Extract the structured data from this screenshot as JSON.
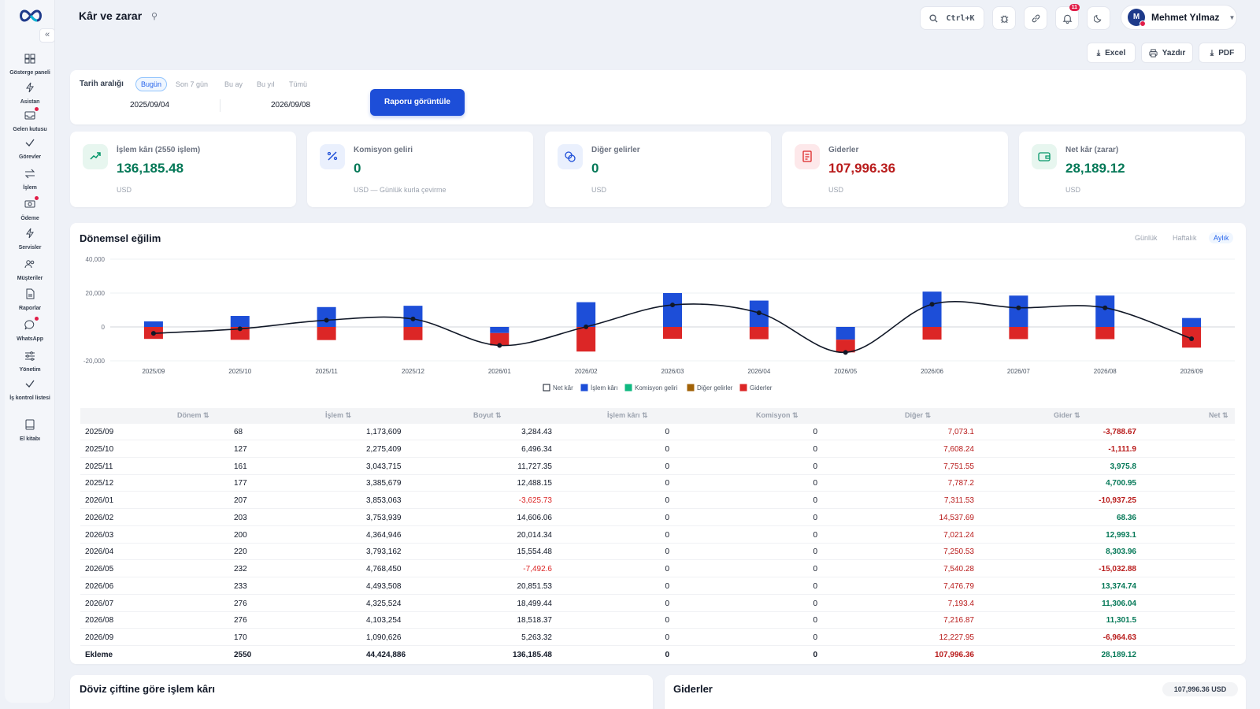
{
  "header": {
    "title": "Kâr ve zarar",
    "search_shortcut": "Ctrl+K",
    "notification_count": "11",
    "user": {
      "initial": "M",
      "name": "Mehmet Yılmaz"
    }
  },
  "exports": {
    "excel": "Excel",
    "print": "Yazdır",
    "pdf": "PDF"
  },
  "sidebar": {
    "items": [
      {
        "label": "Gösterge paneli",
        "icon": "dashboard-icon"
      },
      {
        "label": "Asistan",
        "icon": "bolt-icon"
      },
      {
        "label": "Gelen kutusu",
        "icon": "inbox-icon"
      },
      {
        "label": "Görevler",
        "icon": "check-icon"
      },
      {
        "label": "İşlem",
        "icon": "swap-icon"
      },
      {
        "label": "Ödeme",
        "icon": "payment-icon"
      },
      {
        "label": "Servisler",
        "icon": "bolt-icon"
      },
      {
        "label": "Müşteriler",
        "icon": "users-icon"
      },
      {
        "label": "Raporlar",
        "icon": "report-icon"
      },
      {
        "label": "WhatsApp",
        "icon": "chat-icon"
      },
      {
        "label": "Yönetim",
        "icon": "sliders-icon"
      },
      {
        "label": "İş kontrol listesi",
        "icon": "check-icon"
      },
      {
        "label": "El kitabı",
        "icon": "book-icon"
      }
    ]
  },
  "filter": {
    "label": "Tarih aralığı",
    "ranges": [
      "Bugün",
      "Son 7 gün",
      "Bu ay",
      "Bu yıl",
      "Tümü"
    ],
    "active_range": "Bugün",
    "start_date": "2025/09/04",
    "end_date": "2026/09/08",
    "submit_label": "Raporu görüntüle"
  },
  "kpis": [
    {
      "label": "İşlem kârı (2550 işlem)",
      "value": "136,185.48",
      "sub": "USD",
      "color": "#047857",
      "icon": "trend-icon",
      "bg": "#e7f6ef"
    },
    {
      "label": "Komisyon geliri",
      "value": "0",
      "sub": "USD — Günlük kurla çevirme",
      "color": "#047857",
      "icon": "percent-icon",
      "bg": "#eaf0fd"
    },
    {
      "label": "Diğer gelirler",
      "value": "0",
      "sub": "USD",
      "color": "#047857",
      "icon": "coins-icon",
      "bg": "#eaf0fd"
    },
    {
      "label": "Giderler",
      "value": "107,996.36",
      "sub": "USD",
      "color": "#b91c1c",
      "icon": "receipt-icon",
      "bg": "#fde8ea"
    },
    {
      "label": "Net kâr (zarar)",
      "value": "28,189.12",
      "sub": "USD",
      "color": "#047857",
      "icon": "wallet-icon",
      "bg": "#e7f6ef"
    }
  ],
  "trend": {
    "title": "Dönemsel eğilim",
    "granularity": [
      "Günlük",
      "Haftalık",
      "Aylık"
    ],
    "active_granularity": "Aylık"
  },
  "chart_data": {
    "type": "bar",
    "categories": [
      "2025/09",
      "2025/10",
      "2025/11",
      "2025/12",
      "2026/01",
      "2026/02",
      "2026/03",
      "2026/04",
      "2026/05",
      "2026/06",
      "2026/07",
      "2026/08",
      "2026/09"
    ],
    "yticks": [
      "40,000",
      "20,000",
      "0",
      "-20,000"
    ],
    "ylim": [
      -20000,
      40000
    ],
    "series": [
      {
        "name": "Net kâr",
        "type": "line",
        "color": "#111827",
        "values": [
          -3788.67,
          -1111.9,
          3975.8,
          4700.95,
          -10937.25,
          68.36,
          12993.1,
          8303.96,
          -15032.88,
          13374.74,
          11306.04,
          11301.5,
          -6964.63
        ]
      },
      {
        "name": "İşlem kârı",
        "type": "bar",
        "color": "#1d4ed8",
        "values": [
          3284.43,
          6496.34,
          11727.35,
          12488.15,
          -3625.73,
          14606.06,
          20014.34,
          15554.48,
          -7492.6,
          20851.53,
          18499.44,
          18518.37,
          5263.32
        ]
      },
      {
        "name": "Komisyon geliri",
        "type": "bar",
        "color": "#10b981",
        "values": [
          0,
          0,
          0,
          0,
          0,
          0,
          0,
          0,
          0,
          0,
          0,
          0,
          0
        ]
      },
      {
        "name": "Diğer gelirler",
        "type": "bar",
        "color": "#a16207",
        "values": [
          0,
          0,
          0,
          0,
          0,
          0,
          0,
          0,
          0,
          0,
          0,
          0,
          0
        ]
      },
      {
        "name": "Giderler",
        "type": "bar",
        "color": "#dc2626",
        "values": [
          -7073.1,
          -7608.24,
          -7751.55,
          -7787.2,
          -7311.53,
          -14537.69,
          -7021.24,
          -7250.53,
          -7540.28,
          -7476.79,
          -7193.4,
          -7216.87,
          -12227.95
        ]
      }
    ],
    "legend": [
      "Net kâr",
      "İşlem kârı",
      "Komisyon geliri",
      "Diğer gelirler",
      "Giderler"
    ],
    "legend_position": "bottom"
  },
  "table": {
    "columns": [
      "Dönem ⇅",
      "İşlem ⇅",
      "Boyut ⇅",
      "İşlem kârı ⇅",
      "Komisyon ⇅",
      "Diğer ⇅",
      "Gider ⇅",
      "Net ⇅"
    ],
    "rows": [
      [
        "2025/09",
        "68",
        "1,173,609",
        "3,284.43",
        "0",
        "0",
        "7,073.1",
        "-3,788.67"
      ],
      [
        "2025/10",
        "127",
        "2,275,409",
        "6,496.34",
        "0",
        "0",
        "7,608.24",
        "-1,111.9"
      ],
      [
        "2025/11",
        "161",
        "3,043,715",
        "11,727.35",
        "0",
        "0",
        "7,751.55",
        "3,975.8"
      ],
      [
        "2025/12",
        "177",
        "3,385,679",
        "12,488.15",
        "0",
        "0",
        "7,787.2",
        "4,700.95"
      ],
      [
        "2026/01",
        "207",
        "3,853,063",
        "-3,625.73",
        "0",
        "0",
        "7,311.53",
        "-10,937.25"
      ],
      [
        "2026/02",
        "203",
        "3,753,939",
        "14,606.06",
        "0",
        "0",
        "14,537.69",
        "68.36"
      ],
      [
        "2026/03",
        "200",
        "4,364,946",
        "20,014.34",
        "0",
        "0",
        "7,021.24",
        "12,993.1"
      ],
      [
        "2026/04",
        "220",
        "3,793,162",
        "15,554.48",
        "0",
        "0",
        "7,250.53",
        "8,303.96"
      ],
      [
        "2026/05",
        "232",
        "4,768,450",
        "-7,492.6",
        "0",
        "0",
        "7,540.28",
        "-15,032.88"
      ],
      [
        "2026/06",
        "233",
        "4,493,508",
        "20,851.53",
        "0",
        "0",
        "7,476.79",
        "13,374.74"
      ],
      [
        "2026/07",
        "276",
        "4,325,524",
        "18,499.44",
        "0",
        "0",
        "7,193.4",
        "11,306.04"
      ],
      [
        "2026/08",
        "276",
        "4,103,254",
        "18,518.37",
        "0",
        "0",
        "7,216.87",
        "11,301.5"
      ],
      [
        "2026/09",
        "170",
        "1,090,626",
        "5,263.32",
        "0",
        "0",
        "12,227.95",
        "-6,964.63"
      ],
      [
        "Ekleme",
        "2550",
        "44,424,886",
        "136,185.48",
        "0",
        "0",
        "107,996.36",
        "28,189.12"
      ]
    ]
  },
  "bottom": {
    "left_title": "Döviz çiftine göre işlem kârı",
    "right_title": "Giderler",
    "right_total": "107,996.36 USD"
  }
}
